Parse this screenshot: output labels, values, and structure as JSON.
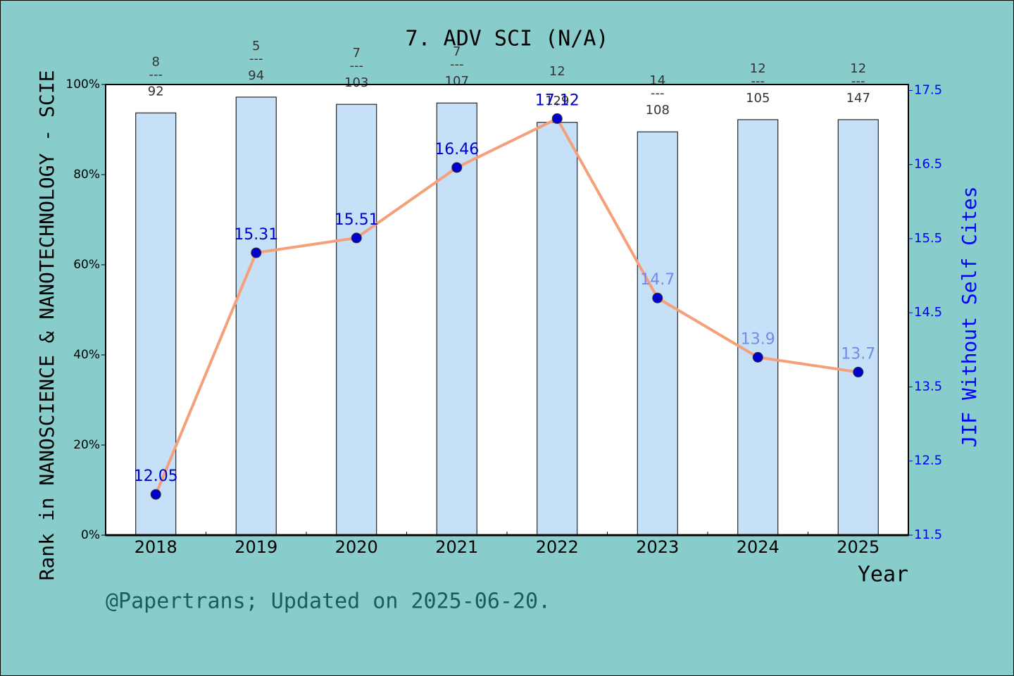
{
  "chart_data": {
    "type": "bar-line",
    "title": "7. ADV SCI (N/A)",
    "x_label": "Year",
    "y_label": "Rank in NANOSCIENCE & NANOTECHNOLOGY - SCIE",
    "y2_label": "JIF Without Self Cites",
    "footer": "@Papertrans; Updated on 2025-06-20.",
    "categories": [
      "2018",
      "2019",
      "2020",
      "2021",
      "2022",
      "2023",
      "2024",
      "2025"
    ],
    "series": [
      {
        "type": "bar",
        "color": "#c5e0f7",
        "values": [
          93.7,
          97.2,
          95.6,
          95.9,
          91.6,
          89.5,
          92.2,
          92.2
        ],
        "bar_labels": [
          [
            "8",
            "---",
            "92"
          ],
          [
            "5",
            "---",
            "94"
          ],
          [
            "7",
            "---",
            "103"
          ],
          [
            "7",
            "---",
            "107"
          ],
          [
            "12",
            "---",
            "129"
          ],
          [
            "14",
            "---",
            "108"
          ],
          [
            "12",
            "---",
            "105"
          ],
          [
            "12",
            "---",
            "147"
          ]
        ]
      },
      {
        "type": "line",
        "axis": "y2",
        "color": "#f4a07a",
        "marker_color": "#0000cd",
        "values": [
          12.05,
          15.31,
          15.51,
          16.46,
          17.12,
          14.7,
          13.9,
          13.7
        ]
      }
    ],
    "ylim": [
      0,
      100
    ],
    "yticks": [
      {
        "value": 0,
        "label": "0%"
      },
      {
        "value": 20,
        "label": "20%"
      },
      {
        "value": 40,
        "label": "40%"
      },
      {
        "value": 60,
        "label": "60%"
      },
      {
        "value": 80,
        "label": "80%"
      },
      {
        "value": 100,
        "label": "100%"
      }
    ],
    "y2lim": [
      11.5,
      17.58
    ],
    "y2ticks": [
      11.5,
      12.5,
      13.5,
      14.5,
      15.5,
      16.5,
      17.5
    ]
  }
}
